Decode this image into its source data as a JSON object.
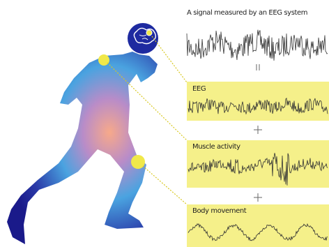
{
  "header": {
    "title": "A signal measured by an EEG system"
  },
  "panels": [
    {
      "label": "EEG"
    },
    {
      "label": "Muscle activity"
    },
    {
      "label": "Body movement"
    }
  ]
}
